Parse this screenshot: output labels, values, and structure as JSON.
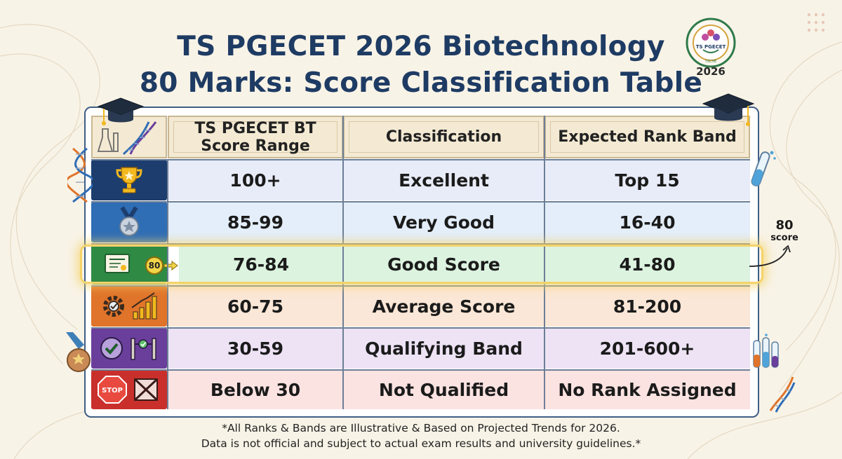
{
  "title": {
    "line_1": "TS PGECET 2026 Biotechnology",
    "line_2": "80 Marks: Score Classification Table"
  },
  "logo": {
    "ring_text": "TELANGANA COUNCIL OF HIGHER EDUCATION",
    "center_text": "TS PGECET",
    "bottom_text": "TSCHE",
    "year": "2026"
  },
  "table": {
    "headers": {
      "score_range": "TS PGECET BT Score Range",
      "classification": "Classification",
      "rank_band": "Expected Rank Band"
    },
    "rows": [
      {
        "score_range": "100+",
        "classification": "Excellent",
        "rank_band": "Top 15",
        "icon": "trophy-icon",
        "color": "#1c3d6e",
        "bg": "#e8ecf8"
      },
      {
        "score_range": "85-99",
        "classification": "Very Good",
        "rank_band": "16-40",
        "icon": "medal-icon",
        "color": "#2f6db5",
        "bg": "#e3eefa"
      },
      {
        "score_range": "76-84",
        "classification": "Good Score",
        "rank_band": "41-80",
        "icon": "certificate-icon",
        "color": "#2f8a44",
        "bg": "#dcf3df",
        "marker": "80"
      },
      {
        "score_range": "60-75",
        "classification": "Average Score",
        "rank_band": "81-200",
        "icon": "gear-chart-icon",
        "color": "#e0742a",
        "bg": "#fbe7d7"
      },
      {
        "score_range": "30-59",
        "classification": "Qualifying Band",
        "rank_band": "201-600+",
        "icon": "check-barrier-icon",
        "color": "#6a3f9c",
        "bg": "#ede3f5"
      },
      {
        "score_range": "Below 30",
        "classification": "Not Qualified",
        "rank_band": "No Rank Assigned",
        "icon": "stop-sign-icon",
        "color": "#c9302c",
        "bg": "#fbe3e1"
      }
    ]
  },
  "score_callout": {
    "number": "80",
    "word": "score"
  },
  "stop_sign_text": "STOP",
  "footnote": {
    "line_1": "*All Ranks & Bands are Illustrative & Based on Projected Trends for 2026.",
    "line_2": "Data is not official and subject to actual exam results and university guidelines.*"
  }
}
